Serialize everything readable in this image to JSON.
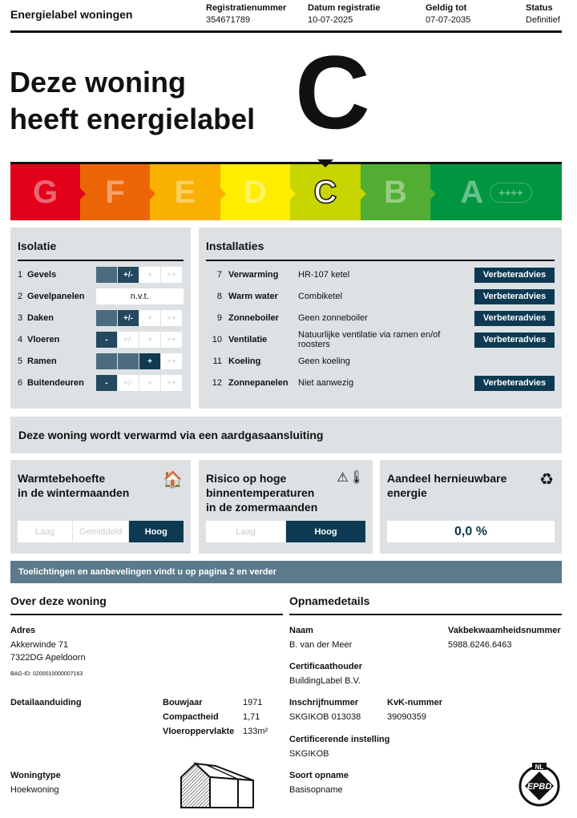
{
  "header": {
    "title": "Energielabel woningen",
    "columns": [
      {
        "label": "Registratienummer",
        "value": "354671789"
      },
      {
        "label": "Datum registratie",
        "value": "10-07-2025"
      },
      {
        "label": "Geldig tot",
        "value": "07-07-2035"
      },
      {
        "label": "Status",
        "value": "Definitief"
      }
    ]
  },
  "hero": {
    "line1": "Deze woning",
    "line2": "heeft energielabel",
    "label": "C"
  },
  "label_bar": {
    "current": "C",
    "classes": [
      {
        "letter": "G",
        "color": "#e2001a"
      },
      {
        "letter": "F",
        "color": "#ec6608"
      },
      {
        "letter": "E",
        "color": "#f9b000"
      },
      {
        "letter": "D",
        "color": "#ffed00"
      },
      {
        "letter": "C",
        "color": "#c8d400"
      },
      {
        "letter": "B",
        "color": "#52ae32"
      },
      {
        "letter": "A",
        "color": "#009640",
        "extra": "++++"
      }
    ]
  },
  "isolatie": {
    "title": "Isolatie",
    "scale": [
      "-",
      "+/-",
      "+",
      "++"
    ],
    "rows": [
      {
        "n": "1",
        "label": "Gevels",
        "level": 2
      },
      {
        "n": "2",
        "label": "Gevelpanelen",
        "na": "n.v.t."
      },
      {
        "n": "3",
        "label": "Daken",
        "level": 2
      },
      {
        "n": "4",
        "label": "Vloeren",
        "level": 1
      },
      {
        "n": "5",
        "label": "Ramen",
        "level": 3
      },
      {
        "n": "6",
        "label": "Buitendeuren",
        "level": 1
      }
    ]
  },
  "installaties": {
    "title": "Installaties",
    "button": "Verbeteradvies",
    "rows": [
      {
        "n": "7",
        "label": "Verwarming",
        "value": "HR-107 ketel",
        "advies": true
      },
      {
        "n": "8",
        "label": "Warm water",
        "value": "Combiketel",
        "advies": true
      },
      {
        "n": "9",
        "label": "Zonneboiler",
        "value": "Geen zonneboiler",
        "advies": true
      },
      {
        "n": "10",
        "label": "Ventilatie",
        "value": "Natuurlijke ventilatie via ramen en/of roosters",
        "advies": true
      },
      {
        "n": "11",
        "label": "Koeling",
        "value": "Geen koeling",
        "advies": false
      },
      {
        "n": "12",
        "label": "Zonnepanelen",
        "value": "Niet aanwezig",
        "advies": true
      }
    ]
  },
  "gas": "Deze woning wordt verwarmd via een aardgasaansluiting",
  "boxes": {
    "warmte": {
      "title1": "Warmtebehoefte",
      "title2": "in de wintermaanden",
      "icon": "house-heating-icon",
      "options": [
        "Laag",
        "Gemiddeld",
        "Hoog"
      ],
      "selected": "Hoog"
    },
    "risico": {
      "title1": "Risico op hoge",
      "title2": "binnentemperaturen",
      "title3": "in de zomermaanden",
      "icon": "thermometer-warning-icon",
      "options": [
        "Laag",
        "Hoog"
      ],
      "selected": "Hoog"
    },
    "hernieuwbaar": {
      "title1": "Aandeel hernieuwbare",
      "title2": "energie",
      "icon": "renewable-cycle-icon",
      "value": "0,0 %"
    }
  },
  "toelichting": "Toelichtingen en aanbevelingen vindt u op pagina 2 en verder",
  "woning": {
    "title": "Over deze woning",
    "adres_label": "Adres",
    "adres1": "Akkerwinde 71",
    "adres2": "7322DG Apeldoorn",
    "bag": "BAG-ID: 0200010000007163",
    "detail_label": "Detailaanduiding",
    "bouwjaar_label": "Bouwjaar",
    "bouwjaar": "1971",
    "compact_label": "Compactheid",
    "compact": "1,71",
    "opp_label": "Vloeroppervlakte",
    "opp": "133m²",
    "type_label": "Woningtype",
    "type": "Hoekwoning"
  },
  "opname": {
    "title": "Opnamedetails",
    "naam_label": "Naam",
    "naam": "B. van der Meer",
    "vak_label": "Vakbekwaamheidsnummer",
    "vak": "5988.6246.6463",
    "cert_label": "Certificaathouder",
    "cert": "BuildingLabel B.V.",
    "inschrijf_label": "Inschrijfnummer",
    "inschrijf": "SKGIKOB 013038",
    "kvk_label": "KvK-nummer",
    "kvk": "39090359",
    "inst_label": "Certificerende instelling",
    "inst": "SKGIKOB",
    "soort_label": "Soort opname",
    "soort": "Basisopname",
    "logo": "NL EPBD"
  }
}
